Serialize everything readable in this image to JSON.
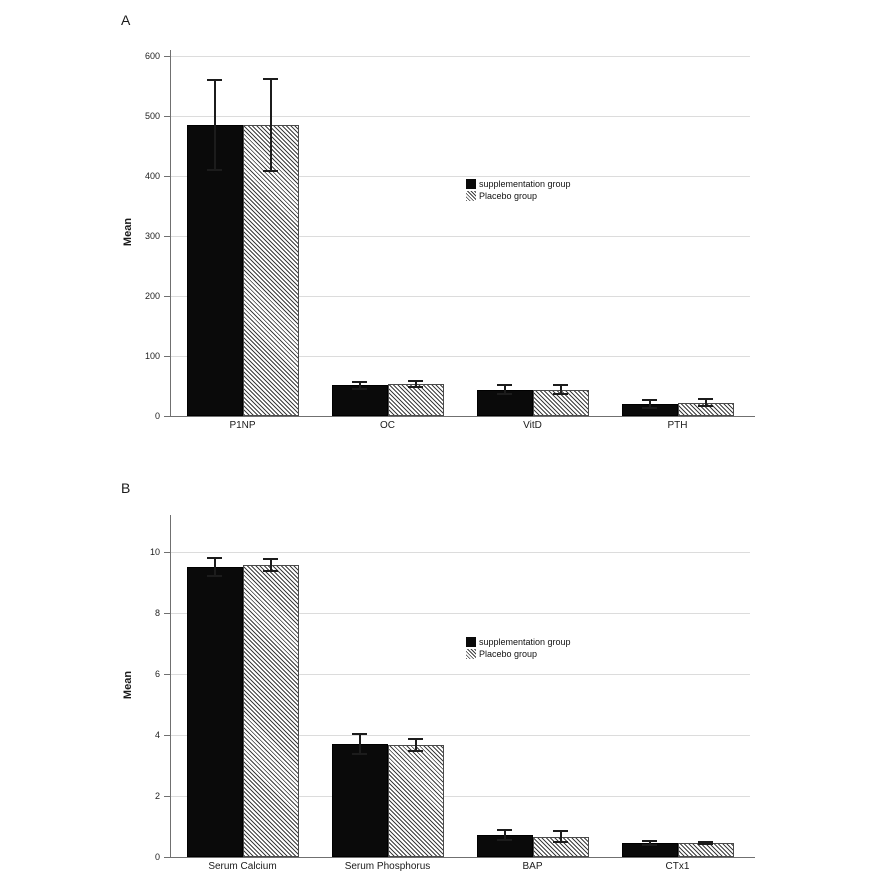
{
  "figure": {
    "background": "#ffffff",
    "colors": {
      "bar_solid": "#0a0a0a",
      "hatch_line": "#3d3d3d",
      "grid": "#dcdcdc",
      "axis": "#707070",
      "error_bar": "#1c1c1c"
    }
  },
  "chart_data": [
    {
      "type": "bar",
      "panel_label": "A",
      "ylabel": "Mean",
      "xlabel": "",
      "categories": [
        "P1NP",
        "OC",
        "VitD",
        "PTH"
      ],
      "series": [
        {
          "name": "supplementation group",
          "style": "solid-black",
          "values": [
            485,
            51,
            44,
            20
          ],
          "errors": [
            75,
            6,
            7,
            6
          ]
        },
        {
          "name": "Placebo group",
          "style": "diagonal-hatch",
          "values": [
            485,
            53,
            44,
            22
          ],
          "errors": [
            77,
            5,
            8,
            6
          ]
        }
      ],
      "yticks": [
        0,
        100,
        200,
        300,
        400,
        500,
        600
      ],
      "ylim": [
        0,
        610
      ],
      "grid": true,
      "legend_position": "inside-center"
    },
    {
      "type": "bar",
      "panel_label": "B",
      "ylabel": "Mean",
      "xlabel": "",
      "categories": [
        "Serum Calcium",
        "Serum Phosphorus",
        "BAP",
        "CTx1"
      ],
      "series": [
        {
          "name": "supplementation group",
          "style": "solid-black",
          "values": [
            9.5,
            3.7,
            0.72,
            0.45
          ],
          "errors": [
            0.3,
            0.33,
            0.17,
            0.07
          ]
        },
        {
          "name": "Placebo group",
          "style": "diagonal-hatch",
          "values": [
            9.55,
            3.68,
            0.67,
            0.46
          ],
          "errors": [
            0.2,
            0.2,
            0.18,
            0.03
          ]
        }
      ],
      "yticks": [
        0,
        2,
        4,
        6,
        8,
        10
      ],
      "ylim": [
        0,
        11.2
      ],
      "grid": true,
      "legend_position": "inside-center"
    }
  ]
}
